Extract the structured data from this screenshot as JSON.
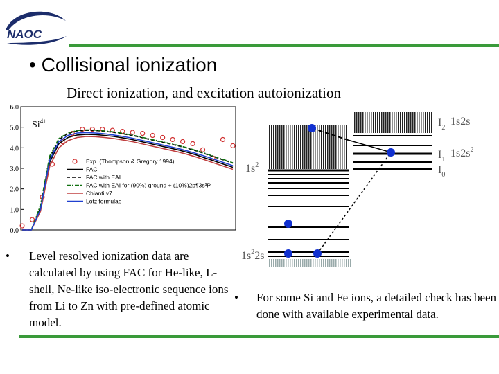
{
  "header": {
    "logo_text": "NAOC",
    "logo_icon": "naoc-swoosh-logo",
    "accent_color": "#3a9a3a"
  },
  "slide": {
    "title": "Collisional ionization",
    "subtitle": "Direct ionization, and excitation autoionization",
    "bullet_symbol": "•",
    "bullet_left": "Level resolved ionization data are calculated by using FAC for He-like, L-shell, Ne-like iso-electronic sequence ions from Li to Zn with pre-defined atomic model.",
    "bullet_right": "For some Si and Fe ions, a detailed check has been done with available experimental data."
  },
  "chart_data": {
    "type": "line",
    "ion_label": "Si",
    "ion_charge": "4+",
    "ylim": [
      0.0,
      6.0
    ],
    "yticks": [
      "0.0",
      "1.0",
      "2.0",
      "3.0",
      "4.0",
      "5.0",
      "6.0"
    ],
    "legend_position": "center-right",
    "series": [
      {
        "name": "Exp. (Thompson & Gregory 1994)",
        "style": "markers",
        "color": "#d03030",
        "values": [
          0.2,
          0.5,
          1.6,
          3.2,
          4.3,
          4.7,
          4.9,
          4.9,
          4.9,
          4.85,
          4.8,
          4.75,
          4.7,
          4.6,
          4.5,
          4.4,
          4.3,
          4.2,
          3.9,
          3.5,
          4.4,
          4.1
        ]
      },
      {
        "name": "FAC",
        "style": "solid",
        "color": "#000000",
        "values": [
          0.0,
          0.0,
          1.0,
          3.3,
          4.2,
          4.5,
          4.62,
          4.65,
          4.64,
          4.6,
          4.55,
          4.48,
          4.4,
          4.3,
          4.2,
          4.1,
          4.0,
          3.9,
          3.78,
          3.65,
          3.5,
          3.35,
          3.2,
          3.05
        ]
      },
      {
        "name": "FAC with EAI",
        "style": "dashed",
        "color": "#000000",
        "values": [
          0.0,
          0.0,
          1.1,
          3.5,
          4.4,
          4.7,
          4.82,
          4.85,
          4.84,
          4.8,
          4.75,
          4.68,
          4.6,
          4.5,
          4.4,
          4.3,
          4.2,
          4.1,
          3.98,
          3.85,
          3.7,
          3.55,
          3.4,
          3.25
        ]
      },
      {
        "name": "FAC with EAI for (90%) ground + (10%)2p¶3s³P",
        "style": "dash-dot",
        "color": "#107010",
        "values": [
          0.0,
          0.0,
          1.2,
          3.6,
          4.45,
          4.72,
          4.84,
          4.87,
          4.86,
          4.82,
          4.77,
          4.7,
          4.62,
          4.52,
          4.42,
          4.32,
          4.22,
          4.12,
          4.0,
          3.87,
          3.72,
          3.57,
          3.42,
          3.27
        ]
      },
      {
        "name": "Chianti v7",
        "style": "solid",
        "color": "#c04040",
        "values": [
          0.0,
          0.0,
          0.9,
          3.1,
          4.0,
          4.35,
          4.5,
          4.55,
          4.54,
          4.5,
          4.45,
          4.38,
          4.3,
          4.2,
          4.1,
          4.0,
          3.9,
          3.8,
          3.68,
          3.55,
          3.4,
          3.25,
          3.1,
          2.95
        ]
      },
      {
        "name": "Lotz formulae",
        "style": "solid",
        "color": "#2040d0",
        "values": [
          0.0,
          0.0,
          1.0,
          3.4,
          4.3,
          4.6,
          4.72,
          4.74,
          4.72,
          4.68,
          4.62,
          4.55,
          4.47,
          4.37,
          4.27,
          4.17,
          4.07,
          3.97,
          3.85,
          3.72,
          3.58,
          3.43,
          3.28,
          3.13
        ]
      }
    ]
  },
  "diagram": {
    "labels": {
      "i2": "I",
      "i2_sub": "2",
      "i2_config": "1s2s",
      "i1": "I",
      "i1_sub": "1",
      "i1_config": "1s2s",
      "i1_sup": "2",
      "i0": "I",
      "i0_sub": "0",
      "mid": "1s",
      "mid_sup": "2",
      "low": "1s",
      "low_sup": "2",
      "low_tail": "2s"
    },
    "dot_color": "#1030d0",
    "text_color": "#555555"
  }
}
